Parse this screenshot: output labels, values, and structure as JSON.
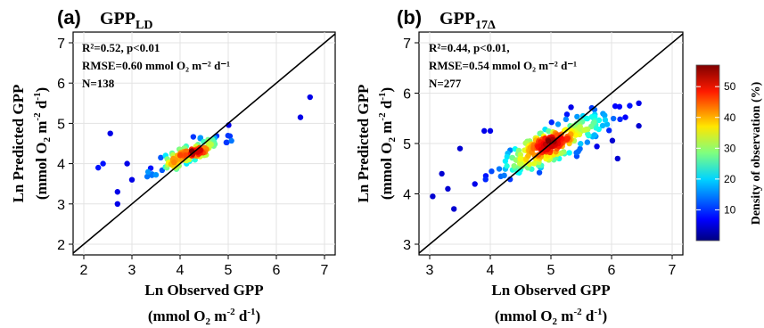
{
  "chart_data": [
    {
      "type": "scatter",
      "panel": "(a)",
      "title_main": "GPP",
      "title_sub": "LD",
      "xlabel": "Ln Observed GPP",
      "xlabel_units": "(mmol O2 m-2 d-1)",
      "ylabel": "Ln Predicted GPP",
      "ylabel_units": "(mmol O2 m-2 d-1)",
      "xlim": [
        2,
        7
      ],
      "ylim": [
        2,
        7
      ],
      "xticks": [
        2,
        3,
        4,
        5,
        6,
        7
      ],
      "yticks": [
        2,
        3,
        4,
        5,
        6,
        7
      ],
      "grid": true,
      "one_to_one_line": true,
      "stats": {
        "r2": "R²=0.52, p<0.01",
        "rmse": "RMSE=0.60 mmol O₂ m⁻² d⁻¹",
        "n": "N=138"
      },
      "center": [
        4.2,
        4.25
      ],
      "spread": [
        0.35,
        0.25
      ],
      "count": 138,
      "seed": 11,
      "outliers": [
        [
          2.55,
          4.75
        ],
        [
          2.7,
          3.0
        ],
        [
          2.7,
          3.3
        ],
        [
          2.3,
          3.9
        ],
        [
          2.4,
          4.0
        ],
        [
          6.5,
          5.15
        ],
        [
          6.7,
          5.65
        ],
        [
          2.9,
          4.0
        ],
        [
          3.0,
          3.6
        ]
      ]
    },
    {
      "type": "scatter",
      "panel": "(b)",
      "title_main": "GPP",
      "title_sub": "17Δ",
      "xlabel": "Ln Observed GPP",
      "xlabel_units": "(mmol O2 m-2 d-1)",
      "ylabel": "Ln Predicted GPP",
      "ylabel_units": "(mmol O2 m-2 d-1)",
      "xlim": [
        3,
        7
      ],
      "ylim": [
        3,
        7
      ],
      "xticks": [
        3,
        4,
        5,
        6,
        7
      ],
      "yticks": [
        3,
        4,
        5,
        6,
        7
      ],
      "grid": true,
      "one_to_one_line": true,
      "stats": {
        "r2": "R²=0.44, p<0.01,",
        "rmse": "RMSE=0.54 mmol O₂ m⁻² d⁻¹",
        "n": "N=277"
      },
      "center": [
        4.95,
        4.95
      ],
      "spread": [
        0.45,
        0.32
      ],
      "count": 277,
      "seed": 29,
      "outliers": [
        [
          3.05,
          3.95
        ],
        [
          3.2,
          4.4
        ],
        [
          3.4,
          3.7
        ],
        [
          3.5,
          4.9
        ],
        [
          3.3,
          4.1
        ],
        [
          6.3,
          5.75
        ],
        [
          6.45,
          5.8
        ],
        [
          6.45,
          5.35
        ],
        [
          6.1,
          4.7
        ],
        [
          3.9,
          5.25
        ],
        [
          4.0,
          5.25
        ]
      ]
    }
  ],
  "colorbar": {
    "label": "Density of observation (%)",
    "ticks": [
      10,
      20,
      30,
      40,
      50
    ],
    "range": [
      0,
      57
    ]
  }
}
